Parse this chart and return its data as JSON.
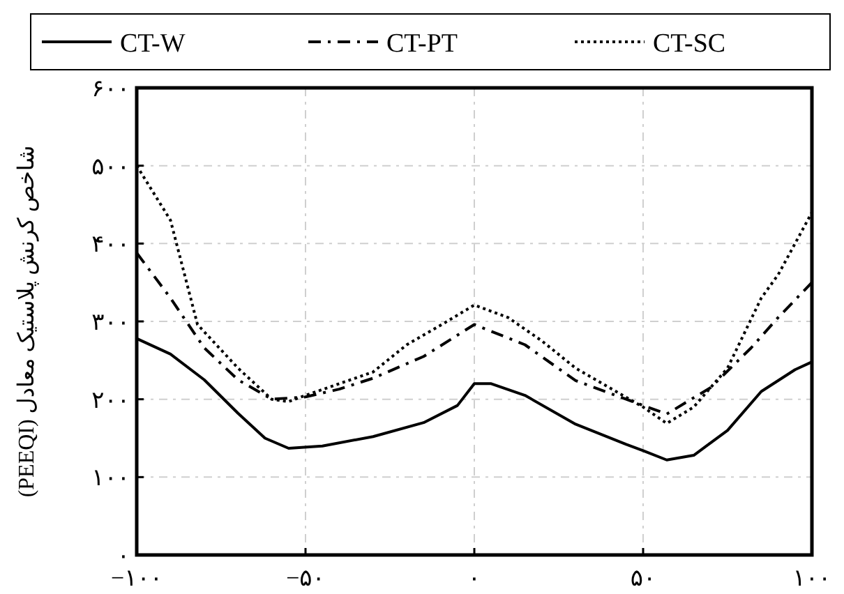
{
  "chart_data": {
    "type": "line",
    "ylabel": "شاخص کرنش پلاستیک معادل (PEEQI)",
    "xlim": [
      -100,
      100
    ],
    "ylim": [
      0,
      600
    ],
    "xticks": [
      {
        "value": -100,
        "label": "−۱۰۰"
      },
      {
        "value": -50,
        "label": "−۵۰"
      },
      {
        "value": 0,
        "label": "۰"
      },
      {
        "value": 50,
        "label": "۵۰"
      },
      {
        "value": 100,
        "label": "۱۰۰"
      }
    ],
    "yticks": [
      {
        "value": 0,
        "label": "۰"
      },
      {
        "value": 100,
        "label": "۱۰۰"
      },
      {
        "value": 200,
        "label": "۲۰۰"
      },
      {
        "value": 300,
        "label": "۳۰۰"
      },
      {
        "value": 400,
        "label": "۴۰۰"
      },
      {
        "value": 500,
        "label": "۵۰۰"
      },
      {
        "value": 600,
        "label": "۶۰۰"
      }
    ],
    "grid": true,
    "legend": "top",
    "marker": "none",
    "series": [
      {
        "name": "CT-W",
        "color": "#000000",
        "line_style": "solid",
        "x": [
          -100,
          -90,
          -80,
          -70,
          -62,
          -55,
          -45,
          -30,
          -15,
          -5,
          0,
          5,
          15,
          30,
          45,
          50,
          57,
          65,
          75,
          85,
          95,
          100
        ],
        "values": [
          278,
          258,
          225,
          182,
          150,
          137,
          140,
          152,
          170,
          192,
          220,
          220,
          205,
          168,
          142,
          134,
          122,
          128,
          160,
          210,
          238,
          248
        ]
      },
      {
        "name": "CT-PT",
        "color": "#000000",
        "line_style": "dashdot",
        "x": [
          -100,
          -90,
          -80,
          -70,
          -60,
          -50,
          -40,
          -30,
          -15,
          0,
          15,
          30,
          45,
          57,
          70,
          82,
          90,
          100
        ],
        "values": [
          388,
          330,
          266,
          225,
          200,
          203,
          213,
          227,
          255,
          296,
          270,
          224,
          200,
          181,
          215,
          266,
          305,
          350
        ]
      },
      {
        "name": "CT-SC",
        "color": "#000000",
        "line_style": "dotted",
        "x": [
          -100,
          -90,
          -82,
          -70,
          -60,
          -55,
          -50,
          -40,
          -30,
          -20,
          -10,
          0,
          10,
          20,
          30,
          40,
          50,
          57,
          65,
          75,
          85,
          90,
          95,
          100
        ],
        "values": [
          500,
          430,
          296,
          240,
          200,
          197,
          205,
          220,
          235,
          270,
          295,
          321,
          305,
          275,
          240,
          215,
          190,
          169,
          190,
          240,
          330,
          360,
          400,
          440
        ]
      }
    ]
  }
}
